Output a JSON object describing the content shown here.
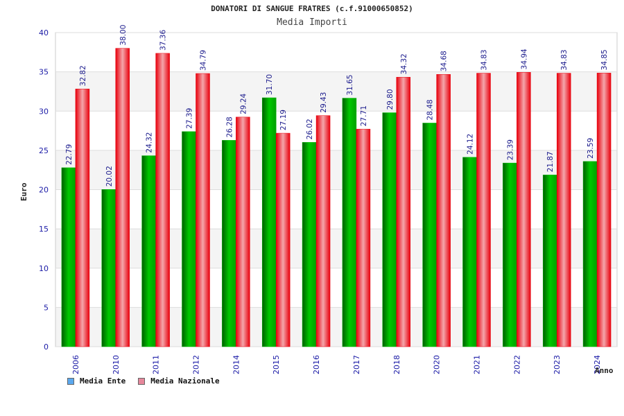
{
  "header": {
    "title": "DONATORI DI SANGUE FRATRES (c.f.91000650852)",
    "subtitle": "Media Importi"
  },
  "axes": {
    "y_label": "Euro",
    "x_label": "Anno"
  },
  "legend": [
    {
      "label": "Media Ente",
      "color": "#5ba8ee"
    },
    {
      "label": "Media Nazionale",
      "color": "#e6879b"
    }
  ],
  "colors": {
    "series_ente": "#00b400",
    "series_nazionale": "#e8000c",
    "axis_text": "#1a1aa6",
    "value_text": "#1a1a8c"
  },
  "chart_data": {
    "type": "bar",
    "title": "DONATORI DI SANGUE FRATRES (c.f.91000650852)",
    "subtitle": "Media Importi",
    "xlabel": "Anno",
    "ylabel": "Euro",
    "ylim": [
      0,
      40
    ],
    "yticks": [
      0,
      5,
      10,
      15,
      20,
      25,
      30,
      35,
      40
    ],
    "grid": true,
    "legend_position": "bottom-left",
    "categories": [
      "2006",
      "2010",
      "2011",
      "2012",
      "2014",
      "2015",
      "2016",
      "2017",
      "2018",
      "2020",
      "2021",
      "2022",
      "2023",
      "2024"
    ],
    "series": [
      {
        "name": "Media Ente",
        "values": [
          22.79,
          20.02,
          24.32,
          27.39,
          26.28,
          31.7,
          26.02,
          31.65,
          29.8,
          28.48,
          24.12,
          23.39,
          21.87,
          23.59
        ]
      },
      {
        "name": "Media Nazionale",
        "values": [
          32.82,
          38.0,
          37.36,
          34.79,
          29.24,
          27.19,
          29.43,
          27.71,
          34.32,
          34.68,
          34.83,
          34.94,
          34.83,
          34.85
        ]
      }
    ]
  }
}
